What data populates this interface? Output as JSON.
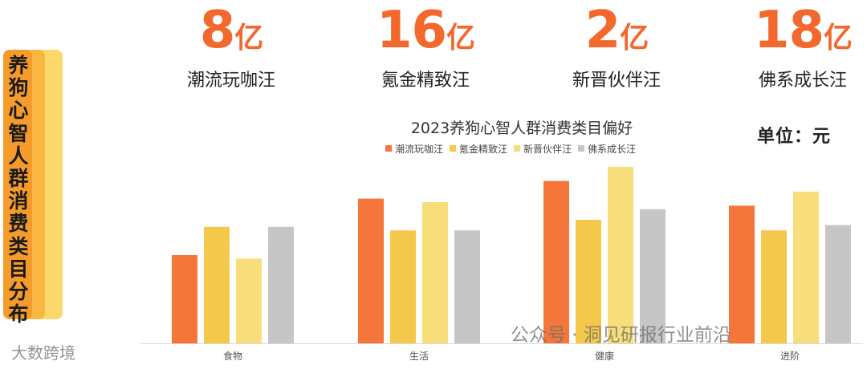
{
  "side_title": "养狗心智人群消费类目分布",
  "stats": [
    {
      "value": "8",
      "unit": "亿",
      "label": "潮流玩咖汪"
    },
    {
      "value": "16",
      "unit": "亿",
      "label": "氪金精致汪"
    },
    {
      "value": "2",
      "unit": "亿",
      "label": "新晋伙伴汪"
    },
    {
      "value": "18",
      "unit": "亿",
      "label": "佛系成长汪"
    }
  ],
  "unit_label": "单位：元",
  "watermark_left": "大数跨境",
  "watermark_right": "公众号 · 洞见研报行业前沿",
  "chart_data": {
    "type": "bar",
    "title": "2023养狗心智人群消费类目偏好",
    "categories": [
      "食物",
      "生活",
      "健康",
      "进阶"
    ],
    "series": [
      {
        "name": "潮流玩咖汪",
        "color": "#f4763a",
        "values": [
          0.5,
          0.82,
          0.92,
          0.78
        ]
      },
      {
        "name": "氪金精致汪",
        "color": "#f4c84a",
        "values": [
          0.66,
          0.64,
          0.7,
          0.64
        ]
      },
      {
        "name": "新晋伙伴汪",
        "color": "#f8de7a",
        "values": [
          0.48,
          0.8,
          1.0,
          0.86
        ]
      },
      {
        "name": "佛系成长汪",
        "color": "#c6c6c6",
        "values": [
          0.66,
          0.64,
          0.76,
          0.67
        ]
      }
    ],
    "xlabel": "",
    "ylabel": "",
    "ylim": [
      0,
      1
    ],
    "grid": false,
    "legend": "top"
  }
}
